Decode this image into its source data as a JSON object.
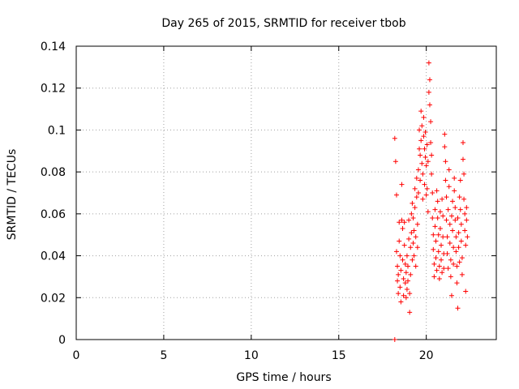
{
  "chart_data": {
    "type": "scatter",
    "title": "Day 265 of 2015, SRMTID for receiver tbob",
    "xlabel": "GPS time / hours",
    "ylabel": "SRMTID / TECUs",
    "xlim": [
      0,
      24
    ],
    "ylim": [
      0,
      0.14
    ],
    "xticks": [
      0,
      5,
      10,
      15,
      20
    ],
    "yticks": [
      0,
      0.02,
      0.04,
      0.06,
      0.08,
      0.1,
      0.12,
      0.14
    ],
    "xtick_labels": [
      "0",
      "5",
      "10",
      "15",
      "20"
    ],
    "ytick_labels": [
      "0",
      "0.02",
      "0.04",
      "0.06",
      "0.08",
      "0.1",
      "0.12",
      "0.14"
    ],
    "grid": true,
    "marker": "+",
    "series": [
      {
        "name": "SRMTID",
        "color": "#ff0000",
        "points": [
          [
            18.2,
            0.0
          ],
          [
            18.2,
            0.096
          ],
          [
            18.25,
            0.085
          ],
          [
            18.3,
            0.069
          ],
          [
            18.3,
            0.042
          ],
          [
            18.35,
            0.035
          ],
          [
            18.35,
            0.028
          ],
          [
            18.4,
            0.022
          ],
          [
            18.4,
            0.031
          ],
          [
            18.45,
            0.056
          ],
          [
            18.45,
            0.047
          ],
          [
            18.5,
            0.04
          ],
          [
            18.5,
            0.025
          ],
          [
            18.55,
            0.018
          ],
          [
            18.55,
            0.033
          ],
          [
            18.6,
            0.057
          ],
          [
            18.6,
            0.074
          ],
          [
            18.65,
            0.053
          ],
          [
            18.65,
            0.038
          ],
          [
            18.7,
            0.029
          ],
          [
            18.7,
            0.021
          ],
          [
            18.75,
            0.045
          ],
          [
            18.75,
            0.056
          ],
          [
            18.8,
            0.036
          ],
          [
            18.8,
            0.027
          ],
          [
            18.85,
            0.032
          ],
          [
            18.85,
            0.02
          ],
          [
            18.9,
            0.024
          ],
          [
            18.9,
            0.04
          ],
          [
            18.95,
            0.035
          ],
          [
            18.95,
            0.028
          ],
          [
            19.0,
            0.048
          ],
          [
            19.0,
            0.057
          ],
          [
            19.05,
            0.013
          ],
          [
            19.05,
            0.022
          ],
          [
            19.1,
            0.031
          ],
          [
            19.1,
            0.044
          ],
          [
            19.15,
            0.051
          ],
          [
            19.15,
            0.06
          ],
          [
            19.2,
            0.038
          ],
          [
            19.2,
            0.065
          ],
          [
            19.25,
            0.058
          ],
          [
            19.25,
            0.046
          ],
          [
            19.3,
            0.052
          ],
          [
            19.3,
            0.04
          ],
          [
            19.35,
            0.072
          ],
          [
            19.35,
            0.063
          ],
          [
            19.4,
            0.049
          ],
          [
            19.4,
            0.035
          ],
          [
            19.45,
            0.068
          ],
          [
            19.45,
            0.077
          ],
          [
            19.5,
            0.055
          ],
          [
            19.5,
            0.044
          ],
          [
            19.55,
            0.081
          ],
          [
            19.55,
            0.07
          ],
          [
            19.6,
            0.091
          ],
          [
            19.6,
            0.1
          ],
          [
            19.65,
            0.088
          ],
          [
            19.65,
            0.076
          ],
          [
            19.7,
            0.109
          ],
          [
            19.7,
            0.095
          ],
          [
            19.75,
            0.084
          ],
          [
            19.75,
            0.102
          ],
          [
            19.8,
            0.079
          ],
          [
            19.8,
            0.067
          ],
          [
            19.85,
            0.097
          ],
          [
            19.85,
            0.106
          ],
          [
            19.9,
            0.091
          ],
          [
            19.9,
            0.074
          ],
          [
            19.95,
            0.099
          ],
          [
            19.95,
            0.087
          ],
          [
            20.0,
            0.083
          ],
          [
            20.0,
            0.069
          ],
          [
            20.05,
            0.093
          ],
          [
            20.05,
            0.072
          ],
          [
            20.1,
            0.061
          ],
          [
            20.1,
            0.085
          ],
          [
            20.15,
            0.118
          ],
          [
            20.15,
            0.132
          ],
          [
            20.2,
            0.124
          ],
          [
            20.2,
            0.112
          ],
          [
            20.25,
            0.104
          ],
          [
            20.25,
            0.094
          ],
          [
            20.3,
            0.088
          ],
          [
            20.3,
            0.079
          ],
          [
            20.35,
            0.07
          ],
          [
            20.35,
            0.058
          ],
          [
            20.4,
            0.05
          ],
          [
            20.4,
            0.043
          ],
          [
            20.45,
            0.036
          ],
          [
            20.45,
            0.03
          ],
          [
            20.5,
            0.062
          ],
          [
            20.5,
            0.054
          ],
          [
            20.55,
            0.047
          ],
          [
            20.55,
            0.039
          ],
          [
            20.6,
            0.033
          ],
          [
            20.6,
            0.071
          ],
          [
            20.65,
            0.066
          ],
          [
            20.65,
            0.058
          ],
          [
            20.7,
            0.05
          ],
          [
            20.7,
            0.042
          ],
          [
            20.75,
            0.035
          ],
          [
            20.75,
            0.029
          ],
          [
            20.8,
            0.061
          ],
          [
            20.8,
            0.053
          ],
          [
            20.85,
            0.045
          ],
          [
            20.85,
            0.038
          ],
          [
            20.9,
            0.032
          ],
          [
            20.9,
            0.067
          ],
          [
            20.95,
            0.059
          ],
          [
            20.95,
            0.049
          ],
          [
            21.0,
            0.041
          ],
          [
            21.0,
            0.034
          ],
          [
            21.05,
            0.098
          ],
          [
            21.05,
            0.092
          ],
          [
            21.1,
            0.085
          ],
          [
            21.1,
            0.076
          ],
          [
            21.15,
            0.068
          ],
          [
            21.15,
            0.057
          ],
          [
            21.2,
            0.049
          ],
          [
            21.2,
            0.041
          ],
          [
            21.25,
            0.034
          ],
          [
            21.25,
            0.062
          ],
          [
            21.3,
            0.073
          ],
          [
            21.3,
            0.081
          ],
          [
            21.35,
            0.055
          ],
          [
            21.35,
            0.046
          ],
          [
            21.4,
            0.038
          ],
          [
            21.4,
            0.03
          ],
          [
            21.45,
            0.021
          ],
          [
            21.45,
            0.059
          ],
          [
            21.5,
            0.066
          ],
          [
            21.5,
            0.052
          ],
          [
            21.55,
            0.044
          ],
          [
            21.55,
            0.036
          ],
          [
            21.6,
            0.077
          ],
          [
            21.6,
            0.071
          ],
          [
            21.65,
            0.063
          ],
          [
            21.65,
            0.057
          ],
          [
            21.7,
            0.049
          ],
          [
            21.7,
            0.042
          ],
          [
            21.75,
            0.035
          ],
          [
            21.75,
            0.027
          ],
          [
            21.8,
            0.015
          ],
          [
            21.8,
            0.058
          ],
          [
            21.85,
            0.051
          ],
          [
            21.85,
            0.044
          ],
          [
            21.9,
            0.037
          ],
          [
            21.9,
            0.068
          ],
          [
            21.95,
            0.076
          ],
          [
            21.95,
            0.062
          ],
          [
            22.0,
            0.055
          ],
          [
            22.0,
            0.047
          ],
          [
            22.05,
            0.039
          ],
          [
            22.05,
            0.031
          ],
          [
            22.1,
            0.094
          ],
          [
            22.1,
            0.086
          ],
          [
            22.15,
            0.079
          ],
          [
            22.15,
            0.067
          ],
          [
            22.2,
            0.06
          ],
          [
            22.2,
            0.052
          ],
          [
            22.25,
            0.045
          ],
          [
            22.25,
            0.023
          ],
          [
            22.3,
            0.063
          ],
          [
            22.3,
            0.057
          ],
          [
            22.35,
            0.049
          ]
        ]
      }
    ]
  }
}
